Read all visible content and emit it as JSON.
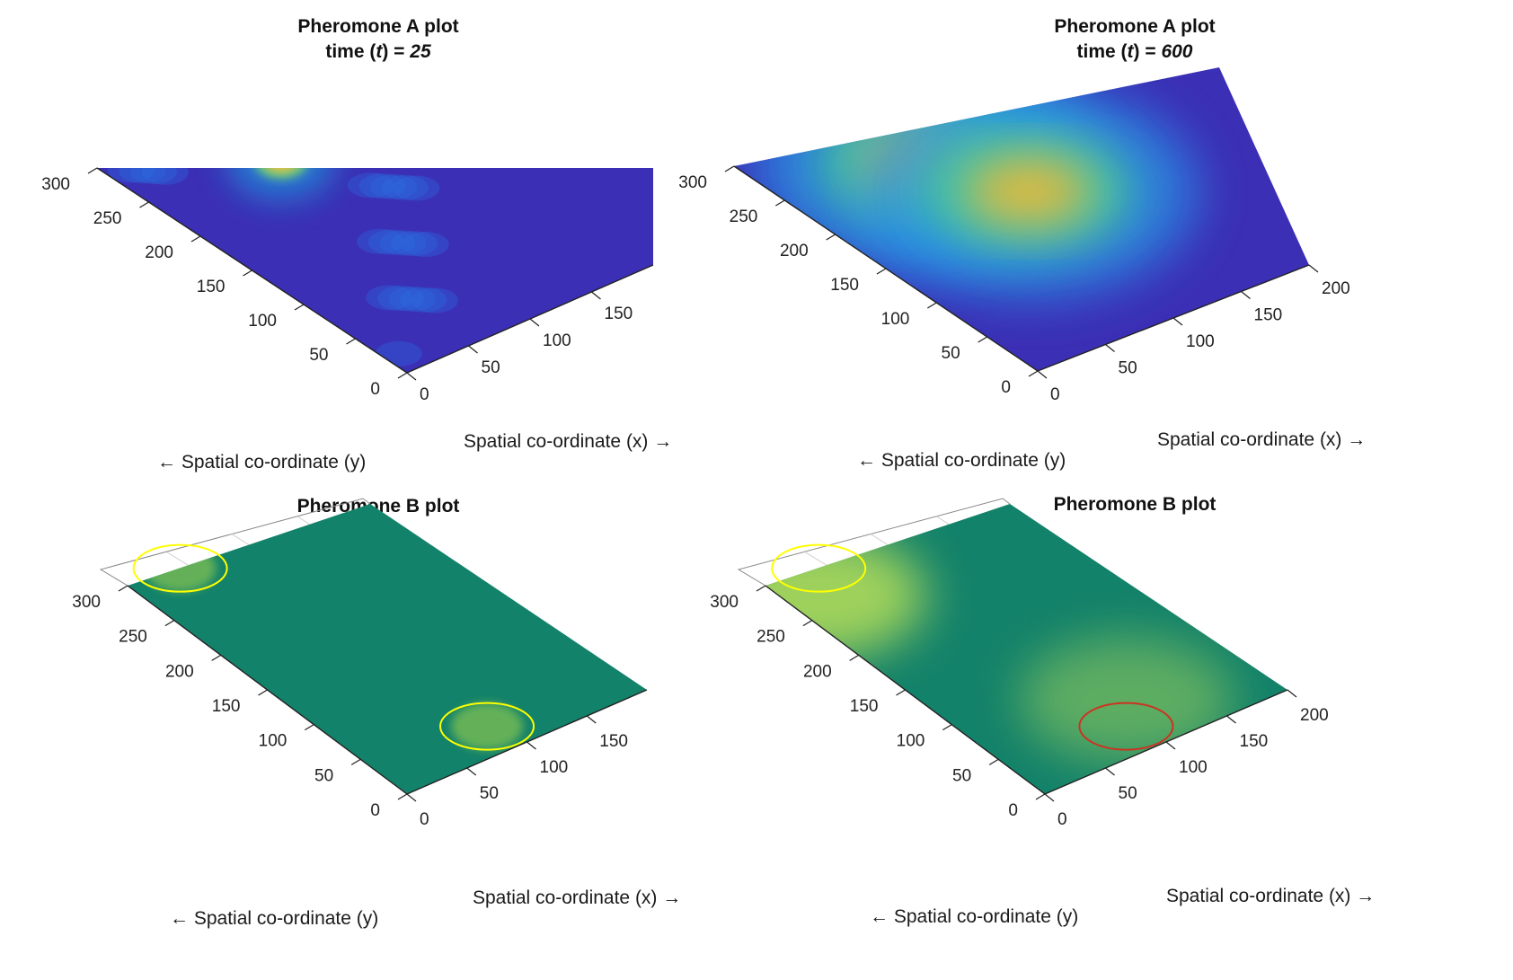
{
  "arrows": {
    "left": "←",
    "right": "→"
  },
  "chart_data": [
    {
      "type": "heatmap",
      "variant": "3d-surface-view",
      "title": "Pheromone A plot",
      "subtitle_prefix": "time (",
      "subtitle_var": "t",
      "subtitle_eq": ") = ",
      "time": 25,
      "xlabel": "Spatial co-ordinate (x)",
      "ylabel": "Spatial co-ordinate (y)",
      "x_ticks": [
        0,
        50,
        100,
        150
      ],
      "y_ticks": [
        0,
        50,
        100,
        150,
        200,
        250,
        300
      ],
      "xlim": [
        0,
        200
      ],
      "ylim": [
        0,
        300
      ],
      "colormap": "parula",
      "peaks": [
        {
          "x": 95,
          "y": 235,
          "intensity": 1.0
        }
      ]
    },
    {
      "type": "heatmap",
      "variant": "3d-surface-view",
      "title": "Pheromone A plot",
      "subtitle_prefix": "time (",
      "subtitle_var": "t",
      "subtitle_eq": ") = ",
      "time": 600,
      "xlabel": "Spatial co-ordinate (x)",
      "ylabel": "Spatial co-ordinate (y)",
      "x_ticks": [
        0,
        50,
        100,
        150,
        200
      ],
      "y_ticks": [
        0,
        50,
        100,
        150,
        200,
        250,
        300
      ],
      "xlim": [
        0,
        200
      ],
      "ylim": [
        0,
        300
      ],
      "colormap": "parula",
      "peaks": [
        {
          "x": 90,
          "y": 235,
          "intensity": 0.8
        },
        {
          "x": 120,
          "y": 170,
          "intensity": 0.9
        }
      ]
    },
    {
      "type": "heatmap",
      "variant": "3d-surface-view",
      "title": "Pheromone B plot",
      "xlabel": "Spatial co-ordinate (x)",
      "ylabel": "Spatial co-ordinate (y)",
      "x_ticks": [
        0,
        50,
        100,
        150
      ],
      "y_ticks": [
        0,
        50,
        100,
        150,
        200,
        250,
        300
      ],
      "xlim": [
        0,
        200
      ],
      "ylim": [
        0,
        300
      ],
      "colormap": "summer",
      "markers": [
        {
          "x": 40,
          "y": 295,
          "shape": "circle",
          "color": "#ffff00"
        },
        {
          "x": 90,
          "y": 30,
          "shape": "circle",
          "color": "#ffff00"
        }
      ]
    },
    {
      "type": "heatmap",
      "variant": "3d-surface-view",
      "title": "Pheromone B plot",
      "xlabel": "Spatial co-ordinate (x)",
      "ylabel": "Spatial co-ordinate (y)",
      "x_ticks": [
        0,
        50,
        100,
        150,
        200
      ],
      "y_ticks": [
        0,
        50,
        100,
        150,
        200,
        250,
        300
      ],
      "xlim": [
        0,
        200
      ],
      "ylim": [
        0,
        300
      ],
      "colormap": "summer",
      "markers": [
        {
          "x": 40,
          "y": 295,
          "shape": "circle",
          "color": "#ffff00"
        },
        {
          "x": 90,
          "y": 30,
          "shape": "circle",
          "color": "#cc3322"
        }
      ]
    }
  ]
}
